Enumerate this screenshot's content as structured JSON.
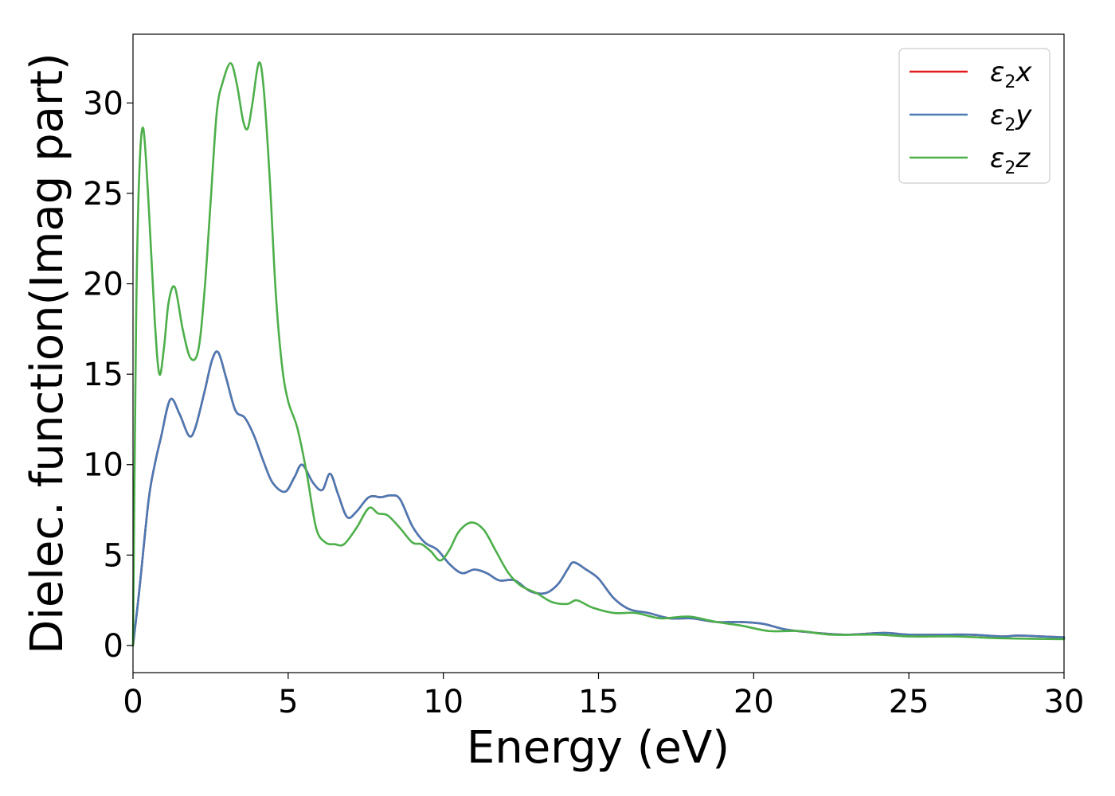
{
  "chart_data": {
    "type": "line",
    "title": "",
    "xlabel": "Energy (eV)",
    "ylabel": "Dielec. function(Imag part)",
    "xlim": [
      0,
      30
    ],
    "ylim": [
      -1.5,
      33.8
    ],
    "xticks": [
      0,
      5,
      10,
      15,
      20,
      25,
      30
    ],
    "yticks": [
      0,
      5,
      10,
      15,
      20,
      25,
      30
    ],
    "xtick_labels": [
      "0",
      "5",
      "10",
      "15",
      "20",
      "25",
      "30"
    ],
    "ytick_labels": [
      "0",
      "5",
      "10",
      "15",
      "20",
      "25",
      "30"
    ],
    "grid": false,
    "legend_position": "top-right",
    "series": [
      {
        "name": "ε2x",
        "legend_base": "ε",
        "legend_sub": "2",
        "legend_tail": "x",
        "color": "#e41a1c",
        "x": [
          0,
          0.2,
          0.5,
          0.7,
          0.9,
          1.2,
          1.5,
          1.8,
          2.0,
          2.3,
          2.55,
          2.75,
          3.0,
          3.3,
          3.6,
          3.9,
          4.2,
          4.5,
          4.9,
          5.2,
          5.45,
          5.8,
          6.1,
          6.35,
          6.6,
          6.9,
          7.2,
          7.6,
          8.0,
          8.3,
          8.6,
          9.0,
          9.4,
          9.8,
          10.2,
          10.6,
          11.0,
          11.4,
          11.8,
          12.3,
          12.8,
          13.3,
          13.7,
          14.0,
          14.2,
          14.6,
          15.0,
          15.5,
          16.0,
          16.6,
          17.3,
          18.0,
          18.8,
          19.6,
          20.3,
          21.0,
          22.0,
          23.0,
          24.2,
          25.0,
          26.2,
          27.0,
          28.0,
          28.5,
          29.3,
          30.0
        ],
        "y": [
          0,
          3.0,
          8.0,
          10.0,
          11.5,
          13.6,
          12.8,
          11.6,
          12.0,
          14.0,
          15.8,
          16.2,
          14.8,
          13.0,
          12.6,
          11.6,
          10.2,
          9.0,
          8.5,
          9.3,
          10.0,
          9.0,
          8.6,
          9.5,
          8.4,
          7.1,
          7.4,
          8.2,
          8.2,
          8.3,
          8.1,
          6.6,
          5.7,
          5.3,
          4.5,
          4.0,
          4.2,
          4.0,
          3.6,
          3.6,
          3.0,
          2.9,
          3.4,
          4.2,
          4.6,
          4.2,
          3.7,
          2.6,
          2.0,
          1.8,
          1.5,
          1.5,
          1.3,
          1.3,
          1.2,
          0.9,
          0.7,
          0.6,
          0.7,
          0.6,
          0.6,
          0.6,
          0.5,
          0.55,
          0.5,
          0.45
        ]
      },
      {
        "name": "ε2y",
        "legend_base": "ε",
        "legend_sub": "2",
        "legend_tail": "y",
        "color": "#4a7ab5",
        "x": [
          0,
          0.2,
          0.5,
          0.7,
          0.9,
          1.2,
          1.5,
          1.8,
          2.0,
          2.3,
          2.55,
          2.75,
          3.0,
          3.3,
          3.6,
          3.9,
          4.2,
          4.5,
          4.9,
          5.2,
          5.45,
          5.8,
          6.1,
          6.35,
          6.6,
          6.9,
          7.2,
          7.6,
          8.0,
          8.3,
          8.6,
          9.0,
          9.4,
          9.8,
          10.2,
          10.6,
          11.0,
          11.4,
          11.8,
          12.3,
          12.8,
          13.3,
          13.7,
          14.0,
          14.2,
          14.6,
          15.0,
          15.5,
          16.0,
          16.6,
          17.3,
          18.0,
          18.8,
          19.6,
          20.3,
          21.0,
          22.0,
          23.0,
          24.2,
          25.0,
          26.2,
          27.0,
          28.0,
          28.5,
          29.3,
          30.0
        ],
        "y": [
          0,
          3.0,
          8.0,
          10.0,
          11.5,
          13.6,
          12.8,
          11.6,
          12.0,
          14.0,
          15.8,
          16.2,
          14.8,
          13.0,
          12.6,
          11.6,
          10.2,
          9.0,
          8.5,
          9.3,
          10.0,
          9.0,
          8.6,
          9.5,
          8.4,
          7.1,
          7.4,
          8.2,
          8.2,
          8.3,
          8.1,
          6.6,
          5.7,
          5.3,
          4.5,
          4.0,
          4.2,
          4.0,
          3.6,
          3.6,
          3.0,
          2.9,
          3.4,
          4.2,
          4.6,
          4.2,
          3.7,
          2.6,
          2.0,
          1.8,
          1.5,
          1.5,
          1.3,
          1.3,
          1.2,
          0.9,
          0.7,
          0.6,
          0.7,
          0.6,
          0.6,
          0.6,
          0.5,
          0.55,
          0.5,
          0.45
        ]
      },
      {
        "name": "ε2z",
        "legend_base": "ε",
        "legend_sub": "2",
        "legend_tail": "z",
        "color": "#4daf4a",
        "x": [
          0,
          0.1,
          0.2,
          0.33,
          0.5,
          0.7,
          0.85,
          1.0,
          1.15,
          1.35,
          1.6,
          1.85,
          2.1,
          2.3,
          2.5,
          2.7,
          2.9,
          3.15,
          3.35,
          3.55,
          3.7,
          3.85,
          4.05,
          4.2,
          4.4,
          4.6,
          4.8,
          5.0,
          5.3,
          5.6,
          5.9,
          6.2,
          6.5,
          6.8,
          7.2,
          7.6,
          7.9,
          8.2,
          8.6,
          9.0,
          9.3,
          9.6,
          9.9,
          10.2,
          10.5,
          10.9,
          11.3,
          11.7,
          12.1,
          12.5,
          13.0,
          13.5,
          14.0,
          14.3,
          14.8,
          15.5,
          16.2,
          17.0,
          17.9,
          18.8,
          19.6,
          20.5,
          21.5,
          22.5,
          24.0,
          25.0,
          26.5,
          28.0,
          30.0
        ],
        "y": [
          0,
          18.0,
          26.0,
          28.6,
          24.5,
          18.0,
          15.0,
          16.5,
          19.0,
          19.8,
          17.5,
          15.9,
          16.3,
          19.5,
          24.5,
          29.5,
          31.2,
          32.2,
          31.0,
          29.0,
          28.6,
          30.0,
          32.2,
          31.0,
          26.0,
          19.5,
          15.5,
          13.5,
          12.0,
          9.5,
          6.5,
          5.7,
          5.6,
          5.6,
          6.5,
          7.6,
          7.3,
          7.2,
          6.5,
          5.7,
          5.6,
          5.2,
          4.7,
          5.3,
          6.3,
          6.8,
          6.4,
          5.2,
          4.0,
          3.3,
          2.9,
          2.4,
          2.3,
          2.5,
          2.1,
          1.8,
          1.8,
          1.5,
          1.6,
          1.3,
          1.1,
          0.8,
          0.8,
          0.6,
          0.6,
          0.5,
          0.5,
          0.4,
          0.35
        ]
      }
    ]
  }
}
